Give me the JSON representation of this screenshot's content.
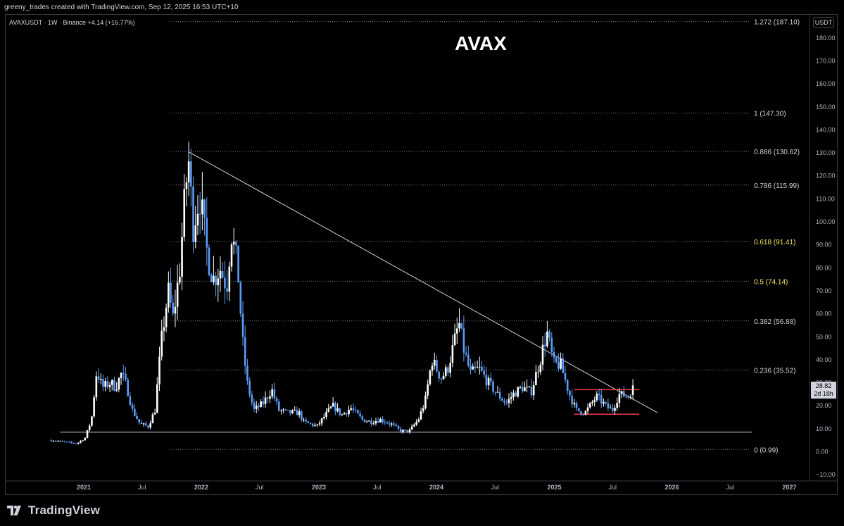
{
  "header": {
    "attribution": "greeny_trades created with TradingView.com, Sep 12, 2025 16:53 UTC+10",
    "symbol_line": "AVAXUSDT · 1W · Binance  +4.14 (+16.77%)",
    "unit_button": "USDT",
    "price_tag_value": "28.82",
    "price_tag_time": "2d 18h"
  },
  "footer": {
    "brand": "TradingView"
  },
  "chart_data": {
    "type": "candlestick",
    "title": "AVAX",
    "y_axis": {
      "ylim": [
        -10,
        190
      ],
      "ticks": [
        -10,
        0,
        10,
        20,
        30,
        40,
        50,
        60,
        70,
        80,
        90,
        100,
        110,
        120,
        130,
        140,
        150,
        160,
        170,
        180
      ],
      "tick_labels": [
        "−10.00",
        "0.00",
        "10.00",
        "20.00",
        "30.00",
        "40.00",
        "50.00",
        "60.00",
        "70.00",
        "80.00",
        "90.00",
        "100.00",
        "110.00",
        "120.00",
        "130.00",
        "140.00",
        "150.00",
        "160.00",
        "170.00",
        "180.00"
      ]
    },
    "x_axis": {
      "xlim": [
        "2020-09-01",
        "2027-04-01"
      ],
      "ticks": [
        {
          "date": "2021-01-01",
          "label": "2021"
        },
        {
          "date": "2021-07-01",
          "label": "Jul"
        },
        {
          "date": "2022-01-01",
          "label": "2022"
        },
        {
          "date": "2022-07-01",
          "label": "Jul"
        },
        {
          "date": "2023-01-01",
          "label": "2023"
        },
        {
          "date": "2023-07-01",
          "label": "Jul"
        },
        {
          "date": "2024-01-01",
          "label": "2024"
        },
        {
          "date": "2024-07-01",
          "label": "Jul"
        },
        {
          "date": "2025-01-01",
          "label": "2025"
        },
        {
          "date": "2025-07-01",
          "label": "Jul"
        },
        {
          "date": "2026-01-01",
          "label": "2026"
        },
        {
          "date": "2026-07-01",
          "label": "Jul"
        },
        {
          "date": "2027-01-01",
          "label": "2027"
        }
      ]
    },
    "fib_levels": [
      {
        "ratio": "1.272",
        "price": 187.1,
        "label": "1.272 (187.10)",
        "color": "#d1d4dc"
      },
      {
        "ratio": "1",
        "price": 147.3,
        "label": "1 (147.30)",
        "color": "#d1d4dc"
      },
      {
        "ratio": "0.886",
        "price": 130.62,
        "label": "0.886 (130.62)",
        "color": "#d1d4dc"
      },
      {
        "ratio": "0.786",
        "price": 115.99,
        "label": "0.786 (115.99)",
        "color": "#d1d4dc"
      },
      {
        "ratio": "0.618",
        "price": 91.41,
        "label": "0.618 (91.41)",
        "color": "#f5e663"
      },
      {
        "ratio": "0.5",
        "price": 74.14,
        "label": "0.5 (74.14)",
        "color": "#f5e663"
      },
      {
        "ratio": "0.382",
        "price": 56.88,
        "label": "0.382 (56.88)",
        "color": "#d1d4dc"
      },
      {
        "ratio": "0.236",
        "price": 35.52,
        "label": "0.236 (35.52)",
        "color": "#d1d4dc"
      },
      {
        "ratio": "0",
        "price": 0.99,
        "label": "0 (0.99)",
        "color": "#d1d4dc"
      }
    ],
    "trendline": {
      "start": {
        "date": "2021-11-22",
        "price": 130.5
      },
      "end": {
        "date": "2025-11-17",
        "price": 17.0
      },
      "color": "#d1d4dc"
    },
    "support_line": {
      "start": {
        "date": "2020-10-20",
        "price": 8.5
      },
      "end": {
        "date": "2026-09-07",
        "price": 8.5
      },
      "color": "#d1d4dc"
    },
    "range_box": {
      "start": "2025-03-03",
      "end": "2025-09-22",
      "top": 27.0,
      "bottom": 16.3,
      "color": "#f23645"
    },
    "last_price": 28.82,
    "candle_colors": {
      "up": "#ffffff",
      "down": "#5b9cf6"
    },
    "path": [
      [
        "2020-09-22",
        5
      ],
      [
        "2020-10-20",
        4.5
      ],
      [
        "2020-12-10",
        3.5
      ],
      [
        "2021-01-05",
        6
      ],
      [
        "2021-01-25",
        14
      ],
      [
        "2021-02-10",
        35
      ],
      [
        "2021-02-28",
        28
      ],
      [
        "2021-03-25",
        30
      ],
      [
        "2021-04-10",
        28
      ],
      [
        "2021-04-28",
        34
      ],
      [
        "2021-05-15",
        28
      ],
      [
        "2021-06-01",
        18
      ],
      [
        "2021-06-25",
        12
      ],
      [
        "2021-07-20",
        11
      ],
      [
        "2021-08-10",
        18
      ],
      [
        "2021-08-30",
        48
      ],
      [
        "2021-09-20",
        70
      ],
      [
        "2021-10-05",
        58
      ],
      [
        "2021-10-25",
        78
      ],
      [
        "2021-11-08",
        105
      ],
      [
        "2021-11-22",
        128
      ],
      [
        "2021-12-06",
        98
      ],
      [
        "2021-12-27",
        112
      ],
      [
        "2022-01-17",
        88
      ],
      [
        "2022-02-07",
        75
      ],
      [
        "2022-02-28",
        80
      ],
      [
        "2022-03-21",
        72
      ],
      [
        "2022-04-04",
        96
      ],
      [
        "2022-04-25",
        78
      ],
      [
        "2022-05-09",
        48
      ],
      [
        "2022-05-23",
        30
      ],
      [
        "2022-06-13",
        18
      ],
      [
        "2022-07-11",
        21
      ],
      [
        "2022-08-08",
        27
      ],
      [
        "2022-08-29",
        18
      ],
      [
        "2022-09-26",
        17
      ],
      [
        "2022-10-31",
        17
      ],
      [
        "2022-11-14",
        13
      ],
      [
        "2022-12-26",
        11
      ],
      [
        "2023-01-16",
        15
      ],
      [
        "2023-02-13",
        20
      ],
      [
        "2023-03-13",
        16
      ],
      [
        "2023-04-10",
        19
      ],
      [
        "2023-05-15",
        14
      ],
      [
        "2023-06-12",
        13
      ],
      [
        "2023-07-10",
        14
      ],
      [
        "2023-08-14",
        12
      ],
      [
        "2023-09-11",
        9
      ],
      [
        "2023-10-09",
        9
      ],
      [
        "2023-11-06",
        14
      ],
      [
        "2023-11-27",
        22
      ],
      [
        "2023-12-18",
        40
      ],
      [
        "2024-01-15",
        32
      ],
      [
        "2024-02-05",
        36
      ],
      [
        "2024-03-11",
        56
      ],
      [
        "2024-03-25",
        45
      ],
      [
        "2024-04-15",
        34
      ],
      [
        "2024-05-13",
        36
      ],
      [
        "2024-06-10",
        30
      ],
      [
        "2024-07-08",
        25
      ],
      [
        "2024-08-05",
        21
      ],
      [
        "2024-08-26",
        25
      ],
      [
        "2024-09-23",
        28
      ],
      [
        "2024-10-21",
        26
      ],
      [
        "2024-11-18",
        40
      ],
      [
        "2024-12-09",
        52
      ],
      [
        "2024-12-30",
        38
      ],
      [
        "2025-01-20",
        38
      ],
      [
        "2025-02-17",
        25
      ],
      [
        "2025-03-10",
        18
      ],
      [
        "2025-04-07",
        17
      ],
      [
        "2025-05-12",
        24
      ],
      [
        "2025-06-09",
        20
      ],
      [
        "2025-06-30",
        18
      ],
      [
        "2025-07-21",
        25
      ],
      [
        "2025-08-18",
        24
      ],
      [
        "2025-09-08",
        28.82
      ]
    ]
  }
}
